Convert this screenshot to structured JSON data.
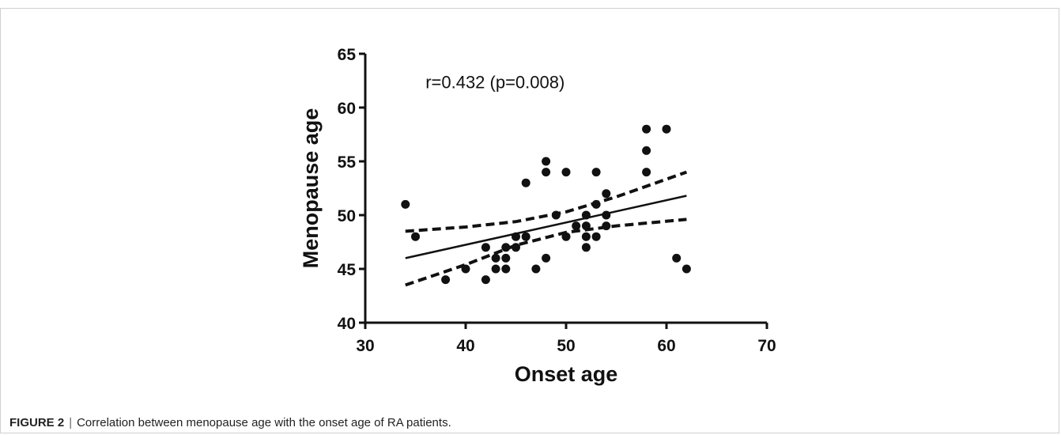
{
  "chart_data": {
    "type": "scatter",
    "xlabel": "Onset age",
    "ylabel": "Menopause age",
    "xlim": [
      30,
      70
    ],
    "ylim": [
      40,
      65
    ],
    "xticks": [
      30,
      40,
      50,
      60,
      70
    ],
    "yticks": [
      40,
      45,
      50,
      55,
      60,
      65
    ],
    "grid": false,
    "annotation": "r=0.432 (p=0.008)",
    "points": [
      {
        "x": 34,
        "y": 51
      },
      {
        "x": 35,
        "y": 48
      },
      {
        "x": 38,
        "y": 44
      },
      {
        "x": 40,
        "y": 45
      },
      {
        "x": 42,
        "y": 47
      },
      {
        "x": 42,
        "y": 44
      },
      {
        "x": 43,
        "y": 46
      },
      {
        "x": 43,
        "y": 45
      },
      {
        "x": 44,
        "y": 47
      },
      {
        "x": 44,
        "y": 46
      },
      {
        "x": 44,
        "y": 45
      },
      {
        "x": 45,
        "y": 48
      },
      {
        "x": 45,
        "y": 47
      },
      {
        "x": 46,
        "y": 53
      },
      {
        "x": 46,
        "y": 48
      },
      {
        "x": 47,
        "y": 45
      },
      {
        "x": 48,
        "y": 55
      },
      {
        "x": 48,
        "y": 54
      },
      {
        "x": 48,
        "y": 46
      },
      {
        "x": 49,
        "y": 50
      },
      {
        "x": 50,
        "y": 54
      },
      {
        "x": 50,
        "y": 48
      },
      {
        "x": 51,
        "y": 49
      },
      {
        "x": 52,
        "y": 50
      },
      {
        "x": 52,
        "y": 49
      },
      {
        "x": 52,
        "y": 48
      },
      {
        "x": 52,
        "y": 47
      },
      {
        "x": 53,
        "y": 54
      },
      {
        "x": 53,
        "y": 51
      },
      {
        "x": 53,
        "y": 48
      },
      {
        "x": 54,
        "y": 52
      },
      {
        "x": 54,
        "y": 50
      },
      {
        "x": 54,
        "y": 49
      },
      {
        "x": 58,
        "y": 58
      },
      {
        "x": 58,
        "y": 56
      },
      {
        "x": 58,
        "y": 54
      },
      {
        "x": 60,
        "y": 58
      },
      {
        "x": 61,
        "y": 46
      },
      {
        "x": 62,
        "y": 45
      }
    ],
    "regression_line": {
      "x": [
        34,
        62
      ],
      "y": [
        46.0,
        51.8
      ]
    },
    "confidence_band": {
      "upper": {
        "x": [
          34,
          40,
          45,
          50,
          55,
          62
        ],
        "y": [
          48.5,
          48.9,
          49.4,
          50.3,
          51.7,
          54.0
        ]
      },
      "lower": {
        "x": [
          34,
          40,
          45,
          50,
          55,
          62
        ],
        "y": [
          43.5,
          45.4,
          47.2,
          48.4,
          49.0,
          49.6
        ]
      }
    }
  },
  "caption": {
    "label": "FIGURE 2",
    "separator": "|",
    "text": "Correlation between menopause age with the onset age of RA patients."
  }
}
